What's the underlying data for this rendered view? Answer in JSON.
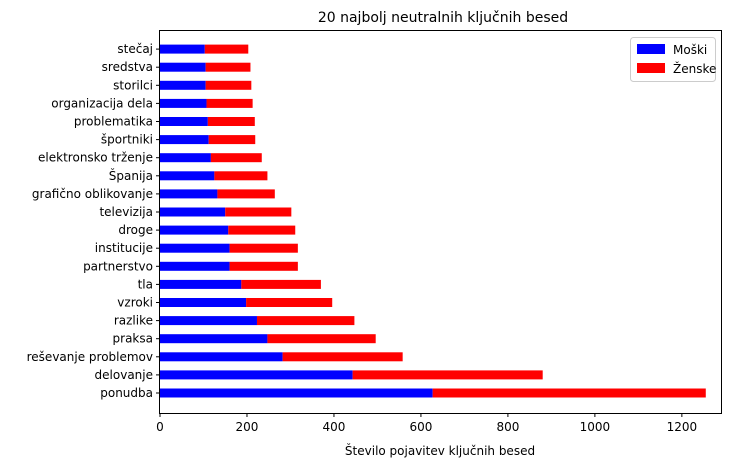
{
  "chart_data": {
    "type": "bar",
    "orientation": "horizontal",
    "stacked": true,
    "title": "20 najbolj neutralnih ključnih besed",
    "xlabel": "Število pojavitev ključnih besed",
    "ylabel": "",
    "xlim": [
      0,
      1290
    ],
    "xticks": [
      0,
      200,
      400,
      600,
      800,
      1000,
      1200
    ],
    "grid": false,
    "legend_position": "top-right",
    "categories": [
      "ponudba",
      "delovanje",
      "reševanje problemov",
      "praksa",
      "razlike",
      "vzroki",
      "tla",
      "partnerstvo",
      "institucije",
      "droge",
      "televizija",
      "grafično oblikovanje",
      "Španija",
      "elektronsko trženje",
      "športniki",
      "problematika",
      "organizacija dela",
      "storilci",
      "sredstva",
      "stečaj"
    ],
    "series": [
      {
        "name": "Moški",
        "color": "#0000ff",
        "values": [
          627,
          443,
          282,
          247,
          223,
          198,
          187,
          160,
          160,
          157,
          150,
          132,
          125,
          117,
          112,
          110,
          107,
          105,
          105,
          103
        ]
      },
      {
        "name": "Ženske",
        "color": "#ff0000",
        "values": [
          628,
          437,
          276,
          249,
          224,
          198,
          183,
          157,
          157,
          154,
          152,
          132,
          122,
          117,
          107,
          108,
          106,
          105,
          103,
          100
        ]
      }
    ]
  }
}
